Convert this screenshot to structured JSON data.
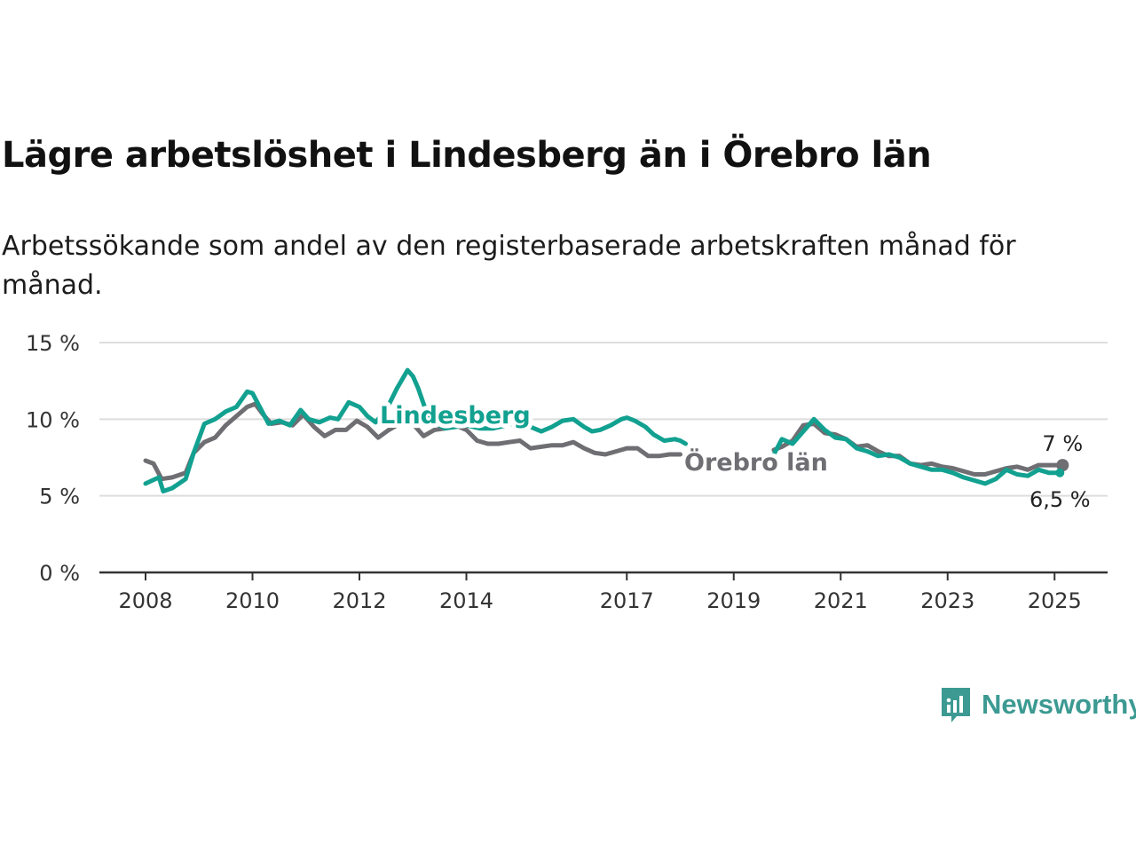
{
  "title": "Lägre arbetslöshet i Lindesberg än i Örebro län",
  "subtitle": "Arbetssökande som andel av den registerbaserade arbetskraften månad för månad.",
  "brand": {
    "name": "Newsworthy"
  },
  "colors": {
    "lindesberg": "#12a190",
    "orebro": "#6e6e73",
    "grid": "#dddddd",
    "axis": "#333333"
  },
  "chart_data": {
    "type": "line",
    "x_ticks": [
      "2008",
      "2010",
      "2012",
      "2014",
      "2017",
      "2019",
      "2021",
      "2023",
      "2025"
    ],
    "x_tick_values": [
      2008,
      2010,
      2012,
      2014,
      2017,
      2019,
      2021,
      2023,
      2025
    ],
    "y_ticks": [
      "0 %",
      "5 %",
      "10 %",
      "15 %"
    ],
    "y_tick_values": [
      0,
      5,
      10,
      15
    ],
    "ylim": [
      0,
      15
    ],
    "xlim": [
      2007.2,
      2026
    ],
    "grid": true,
    "series": [
      {
        "name": "Lindesberg",
        "end_label": "6,5 %",
        "x": [
          2008.0,
          2008.25,
          2008.33,
          2008.5,
          2008.75,
          2008.9,
          2009.1,
          2009.3,
          2009.5,
          2009.7,
          2009.9,
          2010.0,
          2010.15,
          2010.3,
          2010.5,
          2010.7,
          2010.9,
          2011.05,
          2011.25,
          2011.45,
          2011.6,
          2011.8,
          2012.0,
          2012.15,
          2012.3,
          2012.5,
          2012.7,
          2012.9,
          2013.0,
          2013.1,
          2013.25,
          2013.45,
          2013.6,
          2013.8,
          2014.0,
          2014.25,
          2014.5,
          2014.75,
          2015.0,
          2015.2,
          2015.4,
          2015.6,
          2015.8,
          2016.0,
          2016.2,
          2016.35,
          2016.5,
          2016.7,
          2016.9,
          2017.0,
          2017.15,
          2017.35,
          2017.5,
          2017.7,
          2017.9,
          2018.0,
          2018.1,
          2019.75,
          2019.9,
          2020.1,
          2020.3,
          2020.5,
          2020.7,
          2020.9,
          2021.1,
          2021.3,
          2021.5,
          2021.7,
          2021.9,
          2022.1,
          2022.3,
          2022.5,
          2022.7,
          2022.9,
          2023.1,
          2023.3,
          2023.5,
          2023.7,
          2023.9,
          2024.1,
          2024.3,
          2024.5,
          2024.7,
          2024.9,
          2025.1
        ],
        "y": [
          5.8,
          6.2,
          5.3,
          5.5,
          6.1,
          7.8,
          9.7,
          10.0,
          10.5,
          10.8,
          11.8,
          11.7,
          10.7,
          9.7,
          9.9,
          9.6,
          10.6,
          10.0,
          9.8,
          10.1,
          10.0,
          11.1,
          10.8,
          10.2,
          9.8,
          10.6,
          12.0,
          13.2,
          12.8,
          12.0,
          10.5,
          9.7,
          9.4,
          9.5,
          9.6,
          9.4,
          9.4,
          9.6,
          9.8,
          9.5,
          9.2,
          9.5,
          9.9,
          10.0,
          9.5,
          9.2,
          9.3,
          9.6,
          10.0,
          10.1,
          9.9,
          9.5,
          9.0,
          8.6,
          8.7,
          8.6,
          8.4,
          7.7,
          8.7,
          8.4,
          9.2,
          10.0,
          9.3,
          8.8,
          8.7,
          8.1,
          7.9,
          7.6,
          7.7,
          7.5,
          7.1,
          6.9,
          6.7,
          6.7,
          6.5,
          6.2,
          6.0,
          5.8,
          6.1,
          6.7,
          6.4,
          6.3,
          6.7,
          6.5,
          6.5
        ]
      },
      {
        "name": "Örebro län",
        "end_label": "7 %",
        "x": [
          2008.0,
          2008.15,
          2008.3,
          2008.5,
          2008.75,
          2008.9,
          2009.1,
          2009.3,
          2009.5,
          2009.7,
          2009.9,
          2010.05,
          2010.2,
          2010.35,
          2010.55,
          2010.75,
          2010.95,
          2011.15,
          2011.35,
          2011.55,
          2011.75,
          2011.95,
          2012.15,
          2012.35,
          2012.55,
          2012.75,
          2013.0,
          2013.2,
          2013.4,
          2013.6,
          2013.8,
          2014.0,
          2014.2,
          2014.4,
          2014.6,
          2014.8,
          2015.0,
          2015.2,
          2015.4,
          2015.6,
          2015.8,
          2016.0,
          2016.2,
          2016.4,
          2016.6,
          2016.8,
          2017.0,
          2017.2,
          2017.4,
          2017.6,
          2017.8,
          2018.0,
          2019.75,
          2019.9,
          2020.1,
          2020.3,
          2020.5,
          2020.7,
          2020.9,
          2021.1,
          2021.3,
          2021.5,
          2021.7,
          2021.9,
          2022.1,
          2022.3,
          2022.5,
          2022.7,
          2022.9,
          2023.1,
          2023.3,
          2023.5,
          2023.7,
          2023.9,
          2024.1,
          2024.3,
          2024.5,
          2024.7,
          2024.9,
          2025.1,
          2025.15
        ],
        "y": [
          7.3,
          7.1,
          6.1,
          6.2,
          6.5,
          7.8,
          8.5,
          8.8,
          9.6,
          10.2,
          10.8,
          11.0,
          10.3,
          9.7,
          9.8,
          9.6,
          10.3,
          9.5,
          8.9,
          9.3,
          9.3,
          9.9,
          9.5,
          8.8,
          9.3,
          9.7,
          9.7,
          8.9,
          9.3,
          9.4,
          9.6,
          9.3,
          8.6,
          8.4,
          8.4,
          8.5,
          8.6,
          8.1,
          8.2,
          8.3,
          8.3,
          8.5,
          8.1,
          7.8,
          7.7,
          7.9,
          8.1,
          8.1,
          7.6,
          7.6,
          7.7,
          7.7,
          8.0,
          8.2,
          8.6,
          9.6,
          9.7,
          9.1,
          9.0,
          8.7,
          8.2,
          8.3,
          7.9,
          7.6,
          7.6,
          7.1,
          7.0,
          7.1,
          6.9,
          6.8,
          6.6,
          6.4,
          6.4,
          6.6,
          6.8,
          6.9,
          6.7,
          7.0,
          7.0,
          7.0,
          7.0
        ]
      }
    ]
  }
}
